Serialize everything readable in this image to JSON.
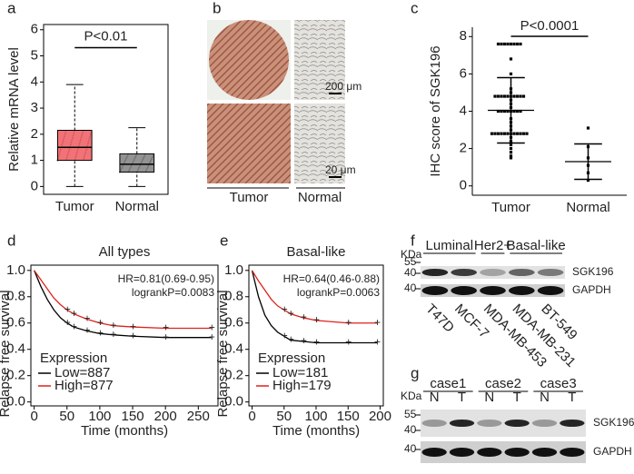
{
  "chart_data": [
    {
      "type": "box",
      "panel": "a",
      "ylabel": "Relative mRNA level",
      "categories": [
        "Tumor",
        "Normal"
      ],
      "boxes": [
        {
          "low": 0,
          "q1": 1.0,
          "median": 1.5,
          "q3": 2.15,
          "high": 3.9,
          "color": "#ee5a5f"
        },
        {
          "low": 0,
          "q1": 0.55,
          "median": 0.85,
          "q3": 1.25,
          "high": 2.25,
          "color": "#808080"
        }
      ],
      "annotation": "P<0.01",
      "ylim": [
        -0.3,
        6.2
      ],
      "yticks": [
        0,
        1,
        2,
        3,
        4,
        5,
        6
      ]
    },
    {
      "type": "dot",
      "panel": "c",
      "ylabel": "IHC score of SGK196",
      "categories": [
        "Tumor",
        "Normal"
      ],
      "groups": [
        {
          "values": [
            7.6,
            7.6,
            7.6,
            7.6,
            7.6,
            7.6,
            7.6,
            7.6,
            6.8,
            6.0,
            5.2,
            5.0,
            4.8,
            4.8,
            4.8,
            4.8,
            4.8,
            4.8,
            4.8,
            4.8,
            4.8,
            4.8,
            4.6,
            4.4,
            4.2,
            4.0,
            4.0,
            4.0,
            4.0,
            4.0,
            4.0,
            4.0,
            4.0,
            3.6,
            3.4,
            3.2,
            3.0,
            2.8,
            2.8,
            2.8,
            2.8,
            2.8,
            2.8,
            2.8,
            2.8,
            2.8,
            2.8,
            2.8,
            2.8,
            2.6,
            2.4,
            2.2,
            2.0,
            1.8,
            1.6,
            1.5
          ],
          "mean": 4.05,
          "sd": 1.75,
          "color": "#000000"
        },
        {
          "values": [
            3.1,
            2.1,
            1.5,
            1.1,
            0.7,
            0.3
          ],
          "mean": 1.3,
          "sd": 0.95,
          "color": "#000000"
        }
      ],
      "annotation": "P<0.0001",
      "ylim": [
        -0.5,
        8.5
      ],
      "yticks": [
        0,
        2,
        4,
        6,
        8
      ]
    },
    {
      "type": "line",
      "panel": "d",
      "title": "All types",
      "xlabel": "Time (months)",
      "ylabel": "Relapse free survival",
      "annotations": [
        "HR=0.81(0.69-0.95)",
        "logrankP=0.0083"
      ],
      "legend_title": "Expression",
      "series": [
        {
          "name": "Low=887",
          "color": "#000000",
          "x": [
            0,
            10,
            20,
            30,
            40,
            50,
            60,
            80,
            100,
            120,
            150,
            200,
            270
          ],
          "values": [
            1,
            0.88,
            0.78,
            0.7,
            0.64,
            0.6,
            0.57,
            0.54,
            0.52,
            0.51,
            0.5,
            0.49,
            0.49
          ]
        },
        {
          "name": "High=877",
          "color": "#e0201b",
          "x": [
            0,
            10,
            20,
            30,
            40,
            50,
            60,
            80,
            100,
            120,
            150,
            200,
            270
          ],
          "values": [
            1,
            0.93,
            0.86,
            0.79,
            0.74,
            0.7,
            0.67,
            0.63,
            0.6,
            0.58,
            0.57,
            0.56,
            0.56
          ]
        }
      ],
      "xlim": [
        -5,
        280
      ],
      "xticks": [
        0,
        50,
        100,
        150,
        200,
        250
      ],
      "ylim": [
        -0.03,
        1.04
      ],
      "yticks": [
        {
          "value": 0,
          "label": "0.0"
        },
        {
          "value": 0.2,
          "label": "0.2"
        },
        {
          "value": 0.4,
          "label": "0.4"
        },
        {
          "value": 0.6,
          "label": "0.6"
        },
        {
          "value": 0.8,
          "label": "0.8"
        },
        {
          "value": 1,
          "label": "1.0"
        }
      ]
    },
    {
      "type": "line",
      "panel": "e",
      "title": "Basal-like",
      "xlabel": "Time (months)",
      "ylabel": "Relapse free survival",
      "annotations": [
        "HR=0.64(0.46-0.88)",
        "logrankP=0.0063"
      ],
      "legend_title": "Expression",
      "series": [
        {
          "name": "Low=181",
          "color": "#000000",
          "x": [
            0,
            10,
            20,
            30,
            40,
            50,
            60,
            80,
            100,
            150,
            195
          ],
          "values": [
            1,
            0.8,
            0.66,
            0.58,
            0.53,
            0.5,
            0.47,
            0.46,
            0.45,
            0.45,
            0.45
          ]
        },
        {
          "name": "High=179",
          "color": "#e0201b",
          "x": [
            0,
            10,
            20,
            30,
            40,
            50,
            60,
            80,
            100,
            150,
            195
          ],
          "values": [
            1,
            0.92,
            0.85,
            0.78,
            0.73,
            0.7,
            0.67,
            0.64,
            0.62,
            0.6,
            0.6
          ]
        }
      ],
      "xlim": [
        -5,
        205
      ],
      "xticks": [
        0,
        50,
        100,
        150,
        200
      ],
      "ylim": [
        -0.03,
        1.04
      ],
      "yticks": [
        {
          "value": 0,
          "label": "0.0"
        },
        {
          "value": 0.2,
          "label": "0.2"
        },
        {
          "value": 0.4,
          "label": "0.4"
        },
        {
          "value": 0.6,
          "label": "0.6"
        },
        {
          "value": 0.8,
          "label": "0.8"
        },
        {
          "value": 1,
          "label": "1.0"
        }
      ]
    }
  ],
  "ihc": {
    "panel": "b",
    "columns": [
      "Tumor",
      "Normal"
    ],
    "scale_bars": [
      "200 μm",
      "20 μm"
    ]
  },
  "blots": [
    {
      "panel": "f",
      "kda_label": "KDa",
      "markers": [
        55,
        40,
        40
      ],
      "groups": [
        "Luminal",
        "Her2+",
        "Basal-like"
      ],
      "lanes": [
        "T47D",
        "MCF-7",
        "MDA-MB-453",
        "MDA-MB-231",
        "BT-549"
      ],
      "bands": [
        "SGK196",
        "GAPDH"
      ]
    },
    {
      "panel": "g",
      "kda_label": "KDa",
      "markers": [
        55,
        40,
        40
      ],
      "groups": [
        "case1",
        "case2",
        "case3"
      ],
      "lanes": [
        "N",
        "T",
        "N",
        "T",
        "N",
        "T"
      ],
      "bands": [
        "SGK196",
        "GAPDH"
      ]
    }
  ]
}
